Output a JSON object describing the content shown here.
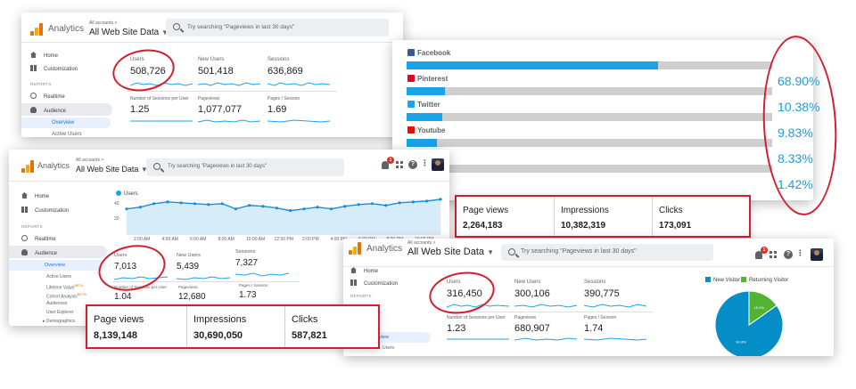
{
  "colors": {
    "accent_blue": "#1a73e8",
    "chart_blue": "#1aa3e8",
    "pie_blue": "#058dc7",
    "pie_green": "#50b432",
    "annotation_red": "#d21f2e",
    "logo_orange": "#e37400"
  },
  "topbar": {
    "app_name": "Analytics",
    "account_small": "All accounts >",
    "property": "All Web Site Data",
    "search_placeholder": "Try searching \"Pageviews in last 30 days\"",
    "notification_count": "1"
  },
  "sidebar": {
    "home": "Home",
    "customization": "Customization",
    "reports_heading": "REPORTS",
    "realtime": "Realtime",
    "audience": "Audience",
    "overview": "Overview",
    "active_users": "Active Users",
    "lifetime_value": "Lifetime Value",
    "cohort_analysis": "Cohort Analysis",
    "beta": "BETA",
    "audiences": "Audiences",
    "user_explorer": "User Explorer",
    "demographics": "Demographics",
    "views_partial": "view",
    "users_partial": "Users"
  },
  "metric_labels": {
    "users": "Users",
    "new_users": "New Users",
    "sessions": "Sessions",
    "sessions_per_user": "Number of Sessions per User",
    "pageviews": "Pageviews",
    "pages_per_session": "Pages / Session"
  },
  "panel1": {
    "users": "508,726",
    "new_users": "501,418",
    "sessions": "636,869",
    "sessions_per_user": "1.25",
    "pageviews": "1,077,077",
    "pages_per_session": "1.69"
  },
  "panel2": {
    "chart_legend": "Users",
    "y_ticks": [
      "40",
      "20"
    ],
    "x_ticks": [
      "2:00 AM",
      "4:00 AM",
      "6:00 AM",
      "8:00 AM",
      "10:00 AM",
      "12:00 PM",
      "2:00 PM",
      "4:00 PM",
      "6:00 PM",
      "8:00 PM",
      "10:00 PM"
    ],
    "users": "7,013",
    "new_users": "5,439",
    "sessions": "7,327",
    "sessions_per_user": "1.04",
    "pageviews": "12,680",
    "pages_per_session": "1.73"
  },
  "panel3": {
    "users": "316,450",
    "new_users": "300,106",
    "sessions": "390,775",
    "sessions_per_user": "1.23",
    "pageviews": "680,907",
    "pages_per_session": "1.74",
    "legend_new": "New Visitor",
    "legend_returning": "Returning Visitor",
    "pie_new_label": "84.8%",
    "pie_returning_label": "15.2%"
  },
  "social": {
    "items": [
      {
        "name": "Facebook",
        "percent": "68.90%",
        "fill": 0.689,
        "color": "#3b5998"
      },
      {
        "name": "Pinterest",
        "percent": "10.38%",
        "fill": 0.1038,
        "color": "#e60023"
      },
      {
        "name": "Twitter",
        "percent": "9.83%",
        "fill": 0.0983,
        "color": "#1da1f2"
      },
      {
        "name": "Youtube",
        "percent": "8.33%",
        "fill": 0.0833,
        "color": "#ff0000"
      },
      {
        "name": "",
        "percent": "1.42%",
        "fill": 0.0142,
        "color": "#cfcfcf"
      }
    ]
  },
  "stats_a": {
    "page_views_label": "Page views",
    "page_views": "2,264,183",
    "impressions_label": "Impressions",
    "impressions": "10,382,319",
    "clicks_label": "Clicks",
    "clicks": "173,091"
  },
  "stats_b": {
    "page_views_label": "Page views",
    "page_views": "8,139,148",
    "impressions_label": "Impressions",
    "impressions": "30,690,050",
    "clicks_label": "Clicks",
    "clicks": "587,821"
  },
  "chart_data": [
    {
      "type": "line",
      "series": [
        {
          "name": "Users",
          "values": [
            30,
            32,
            36,
            38,
            37,
            36,
            35,
            36,
            30,
            34,
            33,
            31,
            28,
            30,
            32,
            30,
            33,
            35,
            36,
            34,
            37,
            38,
            39,
            41
          ]
        }
      ],
      "yticks": [
        "40",
        "20"
      ],
      "xticks": [
        "2:00 AM",
        "4:00 AM",
        "6:00 AM",
        "8:00 AM",
        "10:00 AM",
        "12:00 PM",
        "2:00 PM",
        "4:00 PM",
        "6:00 PM",
        "8:00 PM",
        "10:00 PM"
      ]
    },
    {
      "type": "pie",
      "categories": [
        "New Visitor",
        "Returning Visitor"
      ],
      "values": [
        84.8,
        15.2
      ],
      "labels": [
        "84.8%",
        "15.2%"
      ],
      "legend": "top"
    },
    {
      "type": "bar",
      "categories": [
        "Facebook",
        "Pinterest",
        "Twitter",
        "Youtube",
        ""
      ],
      "values": [
        68.9,
        10.38,
        9.83,
        8.33,
        1.42
      ]
    }
  ]
}
